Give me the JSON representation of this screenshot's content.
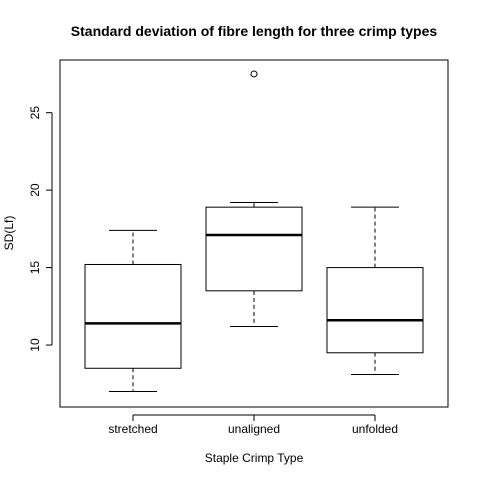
{
  "chart_data": {
    "type": "boxplot",
    "title": "Standard deviation of fibre length for three crimp types",
    "xlabel": "Staple Crimp Type",
    "ylabel": "SD(Lf)",
    "ylim": [
      6.0,
      28.4
    ],
    "yticks": [
      10,
      15,
      20,
      25
    ],
    "grid": false,
    "categories": [
      "stretched",
      "unaligned",
      "unfolded"
    ],
    "boxes": [
      {
        "category": "stretched",
        "whisker_low": 7.0,
        "q1": 8.5,
        "median": 11.4,
        "q3": 15.2,
        "whisker_high": 17.4,
        "outliers": []
      },
      {
        "category": "unaligned",
        "whisker_low": 11.2,
        "q1": 13.5,
        "median": 17.1,
        "q3": 18.9,
        "whisker_high": 19.2,
        "outliers": [
          27.5
        ]
      },
      {
        "category": "unfolded",
        "whisker_low": 8.1,
        "q1": 9.5,
        "median": 11.6,
        "q3": 15.0,
        "whisker_high": 18.9,
        "outliers": []
      }
    ]
  }
}
